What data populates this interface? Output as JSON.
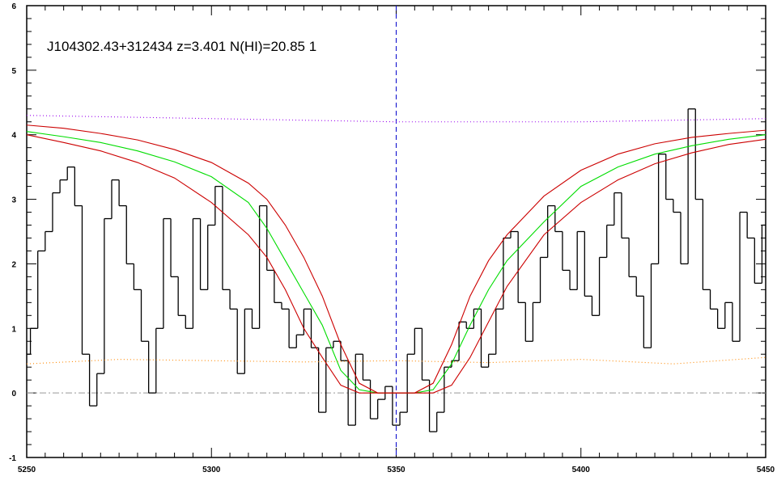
{
  "chart_data": {
    "type": "line",
    "title": "J104302.43+312434 z=3.401 N(HI)=20.85 1",
    "xlim": [
      5250,
      5450
    ],
    "ylim": [
      -1,
      6
    ],
    "xticks": [
      5250,
      5300,
      5350,
      5400,
      5450
    ],
    "yticks": [
      -1,
      0,
      1,
      2,
      3,
      4,
      5,
      6
    ],
    "hlines": [
      0
    ],
    "vlines": [
      5350
    ],
    "series": [
      {
        "style": "step",
        "color": "#000000",
        "x": [
          5250,
          5252,
          5254,
          5256,
          5258,
          5260,
          5262,
          5264,
          5266,
          5268,
          5270,
          5272,
          5274,
          5276,
          5278,
          5280,
          5282,
          5284,
          5286,
          5288,
          5290,
          5292,
          5294,
          5296,
          5298,
          5300,
          5302,
          5304,
          5306,
          5308,
          5310,
          5312,
          5314,
          5316,
          5318,
          5320,
          5322,
          5324,
          5326,
          5328,
          5330,
          5332,
          5334,
          5336,
          5338,
          5340,
          5342,
          5344,
          5346,
          5348,
          5350,
          5352,
          5354,
          5356,
          5358,
          5360,
          5362,
          5364,
          5366,
          5368,
          5370,
          5372,
          5374,
          5376,
          5378,
          5380,
          5382,
          5384,
          5386,
          5388,
          5390,
          5392,
          5394,
          5396,
          5398,
          5400,
          5402,
          5404,
          5406,
          5408,
          5410,
          5412,
          5414,
          5416,
          5418,
          5420,
          5422,
          5424,
          5426,
          5428,
          5430,
          5432,
          5434,
          5436,
          5438,
          5440,
          5442,
          5444,
          5446,
          5448,
          5450
        ],
        "values": [
          0.6,
          1.0,
          2.2,
          2.5,
          3.1,
          3.3,
          3.5,
          2.9,
          0.6,
          -0.2,
          0.3,
          2.7,
          3.3,
          2.9,
          2.0,
          1.6,
          0.8,
          0.0,
          1.0,
          2.7,
          1.8,
          1.2,
          1.0,
          2.7,
          1.6,
          2.6,
          3.2,
          1.6,
          1.3,
          0.3,
          1.3,
          1.0,
          2.9,
          1.9,
          1.4,
          1.3,
          0.7,
          0.9,
          1.3,
          0.7,
          -0.3,
          0.7,
          0.8,
          0.5,
          -0.5,
          0.6,
          0.2,
          -0.4,
          -0.1,
          0.1,
          -0.5,
          -0.3,
          0.6,
          1.0,
          0.2,
          -0.6,
          -0.3,
          0.4,
          0.5,
          1.1,
          1.0,
          1.3,
          0.4,
          0.6,
          1.3,
          2.4,
          2.5,
          1.4,
          0.8,
          1.4,
          2.1,
          2.9,
          2.5,
          1.9,
          1.6,
          2.5,
          1.5,
          1.2,
          2.1,
          2.6,
          3.1,
          2.4,
          1.8,
          1.5,
          0.7,
          2.0,
          3.7,
          3.0,
          2.8,
          2.0,
          4.4,
          3.0,
          1.6,
          1.3,
          1.0,
          1.4,
          0.8,
          2.8,
          2.4,
          1.7,
          2.6
        ]
      },
      {
        "style": "solid",
        "color": "#00dd00",
        "x": [
          5250,
          5260,
          5270,
          5280,
          5290,
          5300,
          5310,
          5315,
          5320,
          5325,
          5330,
          5335,
          5340,
          5345,
          5350,
          5355,
          5360,
          5365,
          5370,
          5375,
          5380,
          5390,
          5400,
          5410,
          5420,
          5430,
          5440,
          5450
        ],
        "values": [
          4.05,
          3.97,
          3.88,
          3.75,
          3.58,
          3.35,
          2.95,
          2.55,
          2.05,
          1.55,
          1.05,
          0.35,
          0.05,
          0,
          0,
          0,
          0.05,
          0.45,
          1.05,
          1.6,
          2.05,
          2.65,
          3.2,
          3.5,
          3.7,
          3.83,
          3.93,
          4.0
        ]
      },
      {
        "style": "solid",
        "color": "#cc0000",
        "x": [
          5250,
          5260,
          5270,
          5280,
          5290,
          5300,
          5310,
          5315,
          5320,
          5325,
          5330,
          5335,
          5340,
          5345,
          5350,
          5355,
          5360,
          5365,
          5370,
          5375,
          5380,
          5390,
          5400,
          5410,
          5420,
          5430,
          5440,
          5450
        ],
        "values": [
          4.15,
          4.1,
          4.02,
          3.92,
          3.77,
          3.57,
          3.25,
          3.0,
          2.6,
          2.1,
          1.5,
          0.75,
          0.15,
          0,
          0,
          0,
          0.15,
          0.75,
          1.5,
          2.05,
          2.45,
          3.05,
          3.45,
          3.7,
          3.86,
          3.96,
          4.02,
          4.07
        ]
      },
      {
        "style": "solid",
        "color": "#cc0000",
        "x": [
          5250,
          5260,
          5270,
          5280,
          5290,
          5300,
          5310,
          5315,
          5320,
          5325,
          5330,
          5335,
          5340,
          5345,
          5350,
          5355,
          5360,
          5365,
          5370,
          5375,
          5380,
          5390,
          5400,
          5410,
          5420,
          5430,
          5440,
          5450
        ],
        "values": [
          4.0,
          3.88,
          3.75,
          3.57,
          3.33,
          2.95,
          2.45,
          2.1,
          1.6,
          1.0,
          0.55,
          0.12,
          0,
          0,
          0,
          0,
          0,
          0.12,
          0.55,
          1.1,
          1.65,
          2.45,
          2.95,
          3.3,
          3.55,
          3.72,
          3.85,
          3.93
        ]
      },
      {
        "style": "dotted",
        "color": "#9900ee",
        "x": [
          5250,
          5300,
          5350,
          5400,
          5450
        ],
        "values": [
          4.3,
          4.25,
          4.2,
          4.2,
          4.25
        ]
      },
      {
        "style": "dotted",
        "color": "#ff8800",
        "x": [
          5250,
          5275,
          5300,
          5325,
          5350,
          5375,
          5400,
          5425,
          5450
        ],
        "values": [
          0.45,
          0.52,
          0.5,
          0.48,
          0.5,
          0.47,
          0.52,
          0.45,
          0.55
        ]
      }
    ]
  }
}
